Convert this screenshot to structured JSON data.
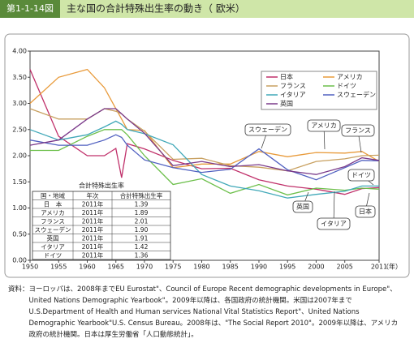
{
  "chart_data": {
    "type": "line",
    "figure_label": "第1-1-14図",
    "title": "主な国の合計特殊出生率の動き（ 欧米）",
    "x_label": "（年）",
    "x": [
      1950,
      1955,
      1960,
      1963,
      1965,
      1966,
      1967,
      1970,
      1975,
      1980,
      1985,
      1990,
      1995,
      2000,
      2005,
      2008,
      2011
    ],
    "xlim": [
      1950,
      2011
    ],
    "xticks": [
      1950,
      1955,
      1960,
      1965,
      1970,
      1975,
      1980,
      1985,
      1990,
      1995,
      2000,
      2005,
      2011
    ],
    "ylim": [
      0,
      4
    ],
    "yticks": [
      {
        "value": 0,
        "label": "0.00"
      },
      {
        "value": 0.5,
        "label": "0.50"
      },
      {
        "value": 1,
        "label": "1.00"
      },
      {
        "value": 1.5,
        "label": "1.50"
      },
      {
        "value": 2,
        "label": "2.00"
      },
      {
        "value": 2.5,
        "label": "2.50"
      },
      {
        "value": 3,
        "label": "3.00"
      },
      {
        "value": 3.5,
        "label": "3.50"
      },
      {
        "value": 4,
        "label": "4.00"
      }
    ],
    "legend_position": "upper right",
    "series": [
      {
        "name": "日本",
        "color": "#c0306a",
        "values": [
          3.65,
          2.37,
          2.0,
          2.0,
          2.14,
          1.58,
          2.23,
          2.13,
          1.91,
          1.75,
          1.76,
          1.54,
          1.42,
          1.36,
          1.26,
          1.37,
          1.39
        ]
      },
      {
        "name": "アメリカ",
        "color": "#e89a3a",
        "values": [
          3.0,
          3.5,
          3.65,
          3.3,
          2.9,
          2.7,
          2.5,
          2.48,
          1.77,
          1.84,
          1.84,
          2.08,
          1.98,
          2.06,
          2.05,
          2.08,
          1.89
        ]
      },
      {
        "name": "フランス",
        "color": "#c8a060",
        "values": [
          2.9,
          2.7,
          2.7,
          2.9,
          2.85,
          2.8,
          2.7,
          2.47,
          1.93,
          1.95,
          1.81,
          1.78,
          1.71,
          1.89,
          1.94,
          2.0,
          2.01
        ]
      },
      {
        "name": "ドイツ",
        "color": "#6cbf4a",
        "values": [
          2.1,
          2.1,
          2.37,
          2.5,
          2.5,
          2.5,
          2.4,
          2.0,
          1.45,
          1.56,
          1.28,
          1.45,
          1.25,
          1.38,
          1.34,
          1.38,
          1.36
        ]
      },
      {
        "name": "イタリア",
        "color": "#40a8b8",
        "values": [
          2.5,
          2.3,
          2.4,
          2.55,
          2.66,
          2.6,
          2.5,
          2.42,
          2.21,
          1.64,
          1.42,
          1.33,
          1.19,
          1.26,
          1.32,
          1.42,
          1.42
        ]
      },
      {
        "name": "スウェーデン",
        "color": "#5060c0",
        "values": [
          2.3,
          2.2,
          2.2,
          2.3,
          2.4,
          2.35,
          2.2,
          1.92,
          1.77,
          1.68,
          1.74,
          2.13,
          1.73,
          1.54,
          1.77,
          1.91,
          1.9
        ]
      },
      {
        "name": "英国",
        "color": "#7a3a8a",
        "values": [
          2.2,
          2.3,
          2.7,
          2.9,
          2.9,
          2.8,
          2.7,
          2.43,
          1.81,
          1.89,
          1.79,
          1.83,
          1.71,
          1.64,
          1.79,
          1.96,
          1.91
        ]
      }
    ],
    "table": {
      "title": "合計特殊出生率",
      "header": [
        "国・地域",
        "年次",
        "合計特殊出生率"
      ],
      "rows": [
        [
          "日　本",
          "2011年",
          "1.39"
        ],
        [
          "アメリカ",
          "2011年",
          "1.89"
        ],
        [
          "フランス",
          "2011年",
          "2.01"
        ],
        [
          "スウェーデン",
          "2011年",
          "1.90"
        ],
        [
          "英国",
          "2011年",
          "1.91"
        ],
        [
          "イタリア",
          "2011年",
          "1.42"
        ],
        [
          "ドイツ",
          "2011年",
          "1.36"
        ]
      ]
    },
    "source_label": "資料：",
    "source_text": "ヨーロッパは、2008年までEU Eurostat\"、Council of Europe Recent demographic developments in Europe\"、United Nations Demographic Yearbook\"。2009年以降は、各国政府の統計機関。米国は2007年までU.S.Department of Health and Human services National Vital Statistics Report\"、United Nations Demographic Yearbook\"U.S. Census Bureau。2008年は、\"The Social Report 2010\"。2009年以降は、アメリカ政府の統計機関。日本は厚生労働省「人口動態統計」。"
  }
}
